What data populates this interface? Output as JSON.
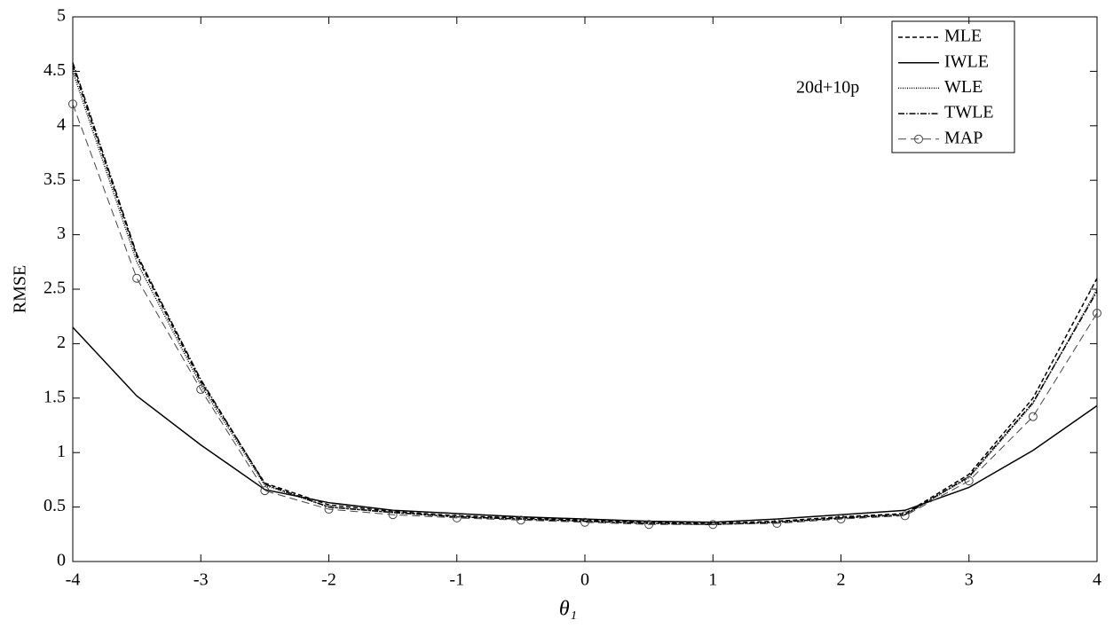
{
  "chart_data": {
    "type": "line",
    "xlabel": "θ₁",
    "ylabel": "RMSE",
    "annotation": "20d+10p",
    "x": [
      -4,
      -3.5,
      -3,
      -2.5,
      -2,
      -1.5,
      -1,
      -0.5,
      0,
      0.5,
      1,
      1.5,
      2,
      2.5,
      3,
      3.5,
      4
    ],
    "series": [
      {
        "name": "MLE",
        "color": "#000000",
        "linestyle": "dashed",
        "values": [
          4.55,
          2.8,
          1.65,
          0.72,
          0.52,
          0.46,
          0.42,
          0.4,
          0.38,
          0.36,
          0.35,
          0.37,
          0.41,
          0.44,
          0.8,
          1.5,
          2.6
        ]
      },
      {
        "name": "IWLE",
        "color": "#000000",
        "linestyle": "solid",
        "values": [
          2.15,
          1.52,
          1.07,
          0.66,
          0.54,
          0.47,
          0.44,
          0.41,
          0.39,
          0.37,
          0.36,
          0.39,
          0.43,
          0.47,
          0.68,
          1.02,
          1.43
        ]
      },
      {
        "name": "WLE",
        "color": "#000000",
        "linestyle": "dotted",
        "values": [
          4.5,
          2.75,
          1.62,
          0.7,
          0.5,
          0.45,
          0.41,
          0.39,
          0.37,
          0.35,
          0.34,
          0.36,
          0.4,
          0.43,
          0.77,
          1.45,
          2.5
        ]
      },
      {
        "name": "TWLE",
        "color": "#000000",
        "linestyle": "dashdot",
        "values": [
          4.58,
          2.82,
          1.67,
          0.71,
          0.5,
          0.45,
          0.41,
          0.39,
          0.37,
          0.35,
          0.34,
          0.36,
          0.4,
          0.43,
          0.78,
          1.46,
          2.48
        ]
      },
      {
        "name": "MAP",
        "color": "#444444",
        "linestyle": "longdash",
        "marker": "o",
        "values": [
          4.2,
          2.6,
          1.58,
          0.65,
          0.48,
          0.43,
          0.4,
          0.38,
          0.36,
          0.34,
          0.34,
          0.35,
          0.39,
          0.42,
          0.74,
          1.33,
          2.28
        ]
      }
    ],
    "xlim": [
      -4,
      4
    ],
    "xticks": [
      -4,
      -3,
      -2,
      -1,
      0,
      1,
      2,
      3,
      4
    ],
    "ylim": [
      0,
      5
    ],
    "yticks": [
      0,
      0.5,
      1,
      1.5,
      2,
      2.5,
      3,
      3.5,
      4,
      4.5,
      5
    ],
    "grid": false,
    "legend": "upper right"
  }
}
